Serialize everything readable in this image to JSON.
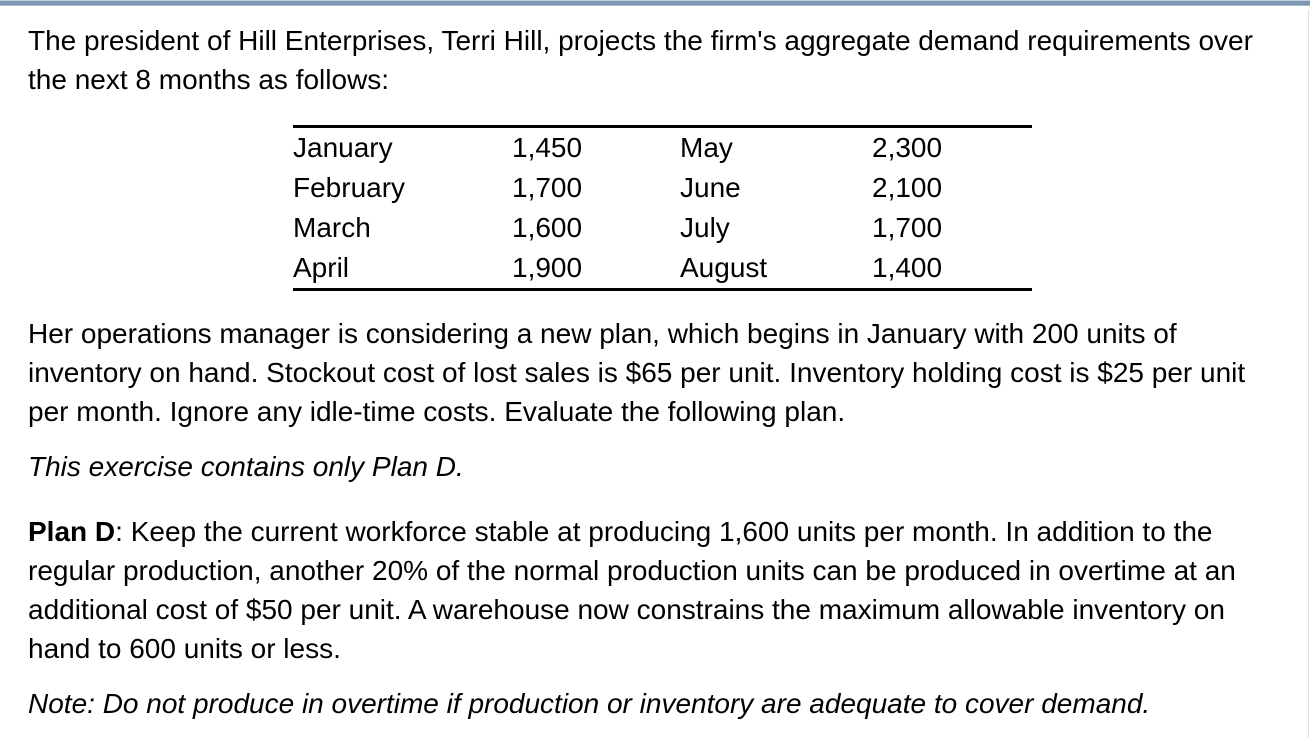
{
  "page": {
    "accent_bar_color": "#7d97b3",
    "accent_bar_light_edge_color": "#c2d3e1",
    "right_edge_line_color": "#dcdee0",
    "text_color": "#000000",
    "background_color": "#ffffff"
  },
  "intro": {
    "lines": [
      "The president of Hill Enterprises, Terri Hill, projects the firm's aggregate demand requirements over",
      "the next 8 months as follows:"
    ]
  },
  "demand_table": {
    "rows": [
      [
        "January",
        "1,450",
        "May",
        "2,300"
      ],
      [
        "February",
        "1,700",
        "June",
        "2,100"
      ],
      [
        "March",
        "1,600",
        "July",
        "1,700"
      ],
      [
        "April",
        "1,900",
        "August",
        "1,400"
      ]
    ]
  },
  "plan_intro": {
    "lines": [
      "Her operations manager is considering a new plan, which begins in January with 200 units of",
      "inventory on hand. Stockout cost of lost sales is $65 per unit. Inventory holding cost is $25 per unit",
      "per month. Ignore any idle-time costs. Evaluate the following plan."
    ]
  },
  "exercise_note": {
    "text": "This exercise contains only Plan D."
  },
  "plan_d": {
    "label": "Plan D",
    "text_lines": [
      ": Keep the current workforce stable at producing 1,600 units per month. In addition to the",
      "regular production, another 20% of the normal production units can be produced in overtime at an",
      "additional cost of $50 per unit. A warehouse now constrains the maximum allowable inventory on",
      "hand to 600 units or less."
    ]
  },
  "bottom_note": {
    "text": "Note: Do not produce in overtime if production or inventory are adequate to cover demand."
  }
}
